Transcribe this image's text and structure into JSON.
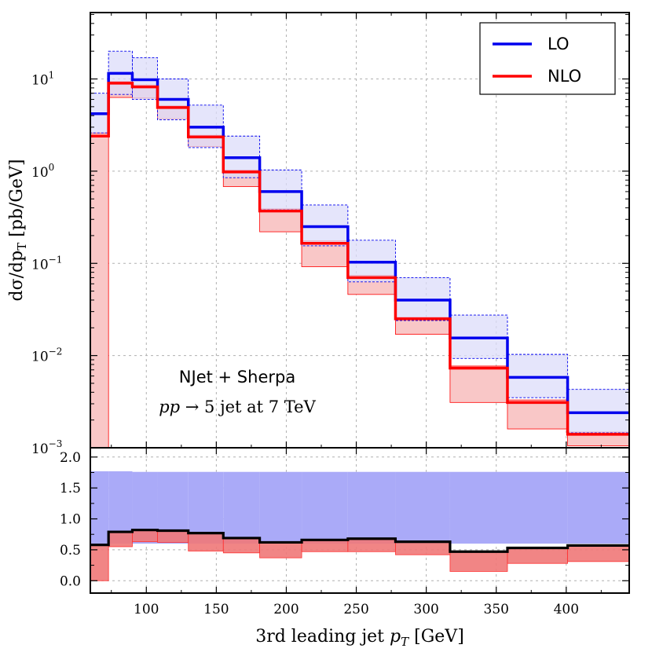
{
  "chart_data": {
    "type": "line",
    "subtype": "step-histogram-with-ratio",
    "x": {
      "label": "3rd leading jet p_T [GeV]",
      "label_parts": [
        "3rd leading jet ",
        "p",
        "T",
        " [GeV]"
      ],
      "range": [
        60,
        445
      ],
      "ticks": [
        100,
        150,
        200,
        250,
        300,
        350,
        400
      ],
      "bin_edges": [
        60,
        73,
        90,
        108,
        130,
        155,
        181,
        211,
        244,
        278,
        317,
        358,
        401,
        445
      ]
    },
    "main": {
      "ylabel_parts": [
        "dσ/dp",
        "T",
        " [pb/GeV]"
      ],
      "yscale": "log",
      "ylim_exp": [
        -3,
        1.72
      ],
      "ytick_exponents": [
        -3,
        -2,
        -1,
        0,
        1
      ],
      "ytick_base": "10",
      "grid": true,
      "series": [
        {
          "name": "LO",
          "color": "#0000ee",
          "band_color": "#dcdcfa",
          "values": [
            4.2,
            11.5,
            9.8,
            6.0,
            3.0,
            1.4,
            0.6,
            0.25,
            0.103,
            0.04,
            0.0155,
            0.0058,
            0.0024
          ],
          "band_low": [
            2.6,
            6.8,
            6.0,
            3.6,
            1.8,
            0.85,
            0.38,
            0.155,
            0.063,
            0.024,
            0.0093,
            0.0035,
            0.00145
          ],
          "band_high": [
            7.0,
            20.0,
            17.0,
            10.0,
            5.2,
            2.4,
            1.03,
            0.43,
            0.178,
            0.07,
            0.0275,
            0.0103,
            0.0043
          ]
        },
        {
          "name": "NLO",
          "color": "#ff0000",
          "band_color": "#f9c7c7",
          "values": [
            2.4,
            9.0,
            8.2,
            4.9,
            2.35,
            0.98,
            0.37,
            0.165,
            0.07,
            0.025,
            0.0073,
            0.0031,
            0.0014
          ],
          "band_low": [
            0.001,
            6.3,
            6.2,
            3.7,
            1.85,
            0.68,
            0.22,
            0.092,
            0.046,
            0.017,
            0.0031,
            0.0016,
            0.00105
          ],
          "band_high": [
            2.6,
            9.4,
            8.6,
            5.1,
            2.45,
            1.03,
            0.39,
            0.175,
            0.074,
            0.026,
            0.0077,
            0.0033,
            0.00148
          ]
        }
      ],
      "legend": {
        "location": "top-right",
        "entries": [
          "LO",
          "NLO"
        ]
      },
      "annotation": {
        "line1": "NJet + Sherpa",
        "line2_parts": [
          "pp",
          " → 5 jet at 7 TeV"
        ]
      }
    },
    "ratio": {
      "ylim": [
        -0.2,
        2.15
      ],
      "yticks": [
        0.0,
        0.5,
        1.0,
        1.5,
        2.0
      ],
      "ytick_labels": [
        "0.0",
        "0.5",
        "1.0",
        "1.5",
        "2.0"
      ],
      "lo_band": {
        "color": "#aaaaf8",
        "low": [
          0.6,
          0.6,
          0.6,
          0.6,
          0.6,
          0.6,
          0.6,
          0.6,
          0.6,
          0.6,
          0.6,
          0.6,
          0.6
        ],
        "high": [
          1.77,
          1.77,
          1.76,
          1.76,
          1.76,
          1.76,
          1.76,
          1.76,
          1.76,
          1.76,
          1.76,
          1.76,
          1.76
        ]
      },
      "nlo_band": {
        "color": "#f07878",
        "low": [
          0.0,
          0.55,
          0.63,
          0.62,
          0.48,
          0.45,
          0.37,
          0.47,
          0.47,
          0.42,
          0.15,
          0.28,
          0.31
        ],
        "high": [
          0.58,
          0.8,
          0.83,
          0.82,
          0.78,
          0.7,
          0.62,
          0.66,
          0.68,
          0.63,
          0.47,
          0.53,
          0.58
        ]
      },
      "nlo_over_lo": {
        "color": "#000000",
        "values": [
          0.58,
          0.79,
          0.82,
          0.81,
          0.77,
          0.69,
          0.62,
          0.66,
          0.68,
          0.63,
          0.47,
          0.53,
          0.57
        ]
      }
    }
  }
}
